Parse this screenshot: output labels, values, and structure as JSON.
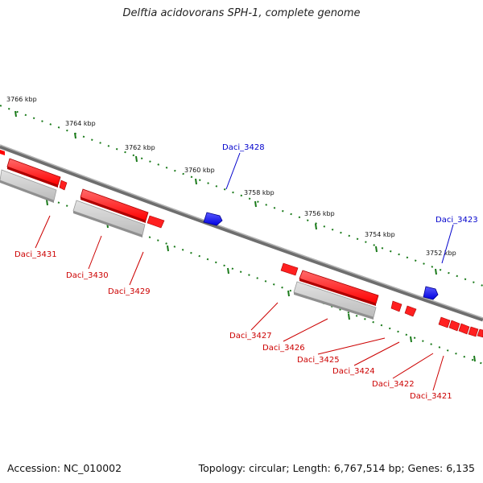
{
  "title": "Delftia acidovorans SPH-1, complete genome",
  "footer": {
    "accession": "Accession: NC_010002",
    "topology": "Topology: circular; Length: 6,767,514 bp; Genes: 6,135"
  },
  "colors": {
    "forward_gene": "#ff0000",
    "forward_label": "#cc0000",
    "reverse_gene": "#0000ff",
    "reverse_label": "#0000cc",
    "tick": "#1a7a1a",
    "backbone": "#7a7a7a",
    "cds_shadow": "#bdbdbd"
  },
  "scale_labels": [
    "3766 kbp",
    "3764 kbp",
    "3762 kbp",
    "3760 kbp",
    "3758 kbp",
    "3756 kbp",
    "3754 kbp",
    "3752 kbp"
  ],
  "gene_labels": {
    "daci_3428": "Daci_3428",
    "daci_3423": "Daci_3423",
    "daci_3431": "Daci_3431",
    "daci_3430": "Daci_3430",
    "daci_3429": "Daci_3429",
    "daci_3427": "Daci_3427",
    "daci_3426": "Daci_3426",
    "daci_3425": "Daci_3425",
    "daci_3424": "Daci_3424",
    "daci_3422": "Daci_3422",
    "daci_3421": "Daci_3421"
  }
}
